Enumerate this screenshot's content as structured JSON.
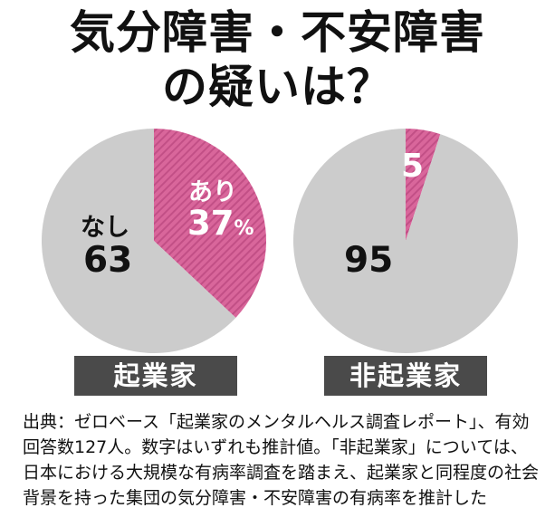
{
  "title_line1": "気分障害・不安障害",
  "title_line2": "の疑いは？",
  "colors": {
    "yes": "#d9669b",
    "yes_stripe": "#c24f86",
    "no": "#cccccc",
    "category_box": "#4a4a4a"
  },
  "chart_data": [
    {
      "type": "pie",
      "category": "起業家",
      "slices": [
        {
          "name": "あり",
          "value": 37,
          "unit": "%"
        },
        {
          "name": "なし",
          "value": 63
        }
      ]
    },
    {
      "type": "pie",
      "category": "非起業家",
      "slices": [
        {
          "name": "",
          "value": 5
        },
        {
          "name": "",
          "value": 95
        }
      ]
    }
  ],
  "labels": {
    "ent_yes_name": "あり",
    "ent_yes_value": "37",
    "ent_yes_unit": "%",
    "ent_no_name": "なし",
    "ent_no_value": "63",
    "nonent_yes_value": "5",
    "nonent_no_value": "95"
  },
  "categories": {
    "entrepreneur": "起業家",
    "non_entrepreneur": "非起業家"
  },
  "note": "出典：ゼロベース「起業家のメンタルヘルス調査レポート」、有効回答数127人。数字はいずれも推計値。「非起業家」については、日本における大規模な有病率調査を踏まえ、起業家と同程度の社会背景を持った集団の気分障害・不安障害の有病率を推計した"
}
